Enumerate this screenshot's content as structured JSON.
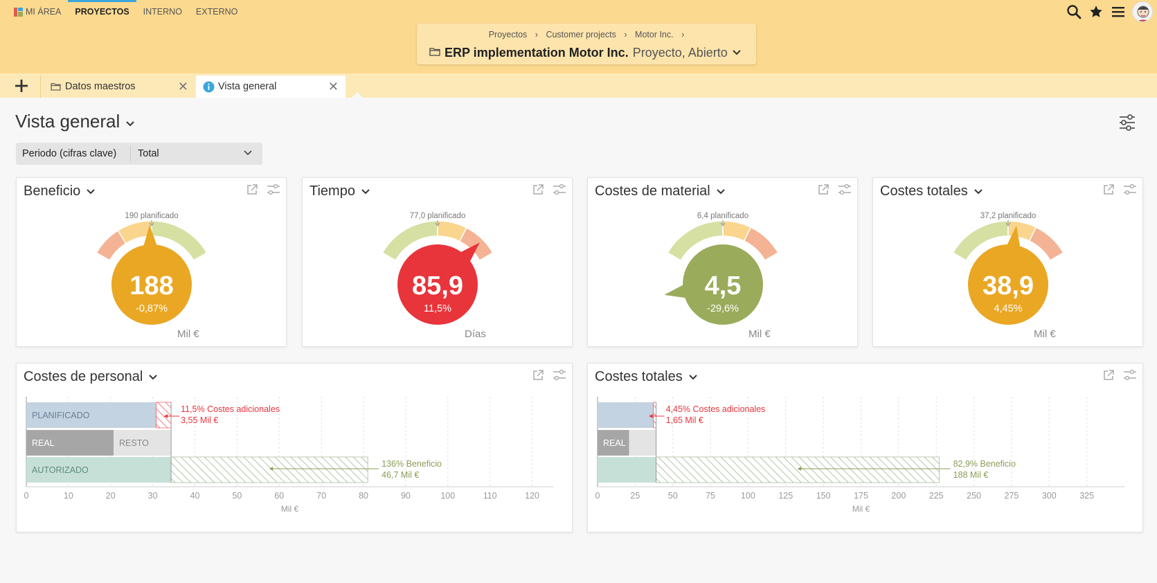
{
  "nav": {
    "items": [
      {
        "label": "MI ÁREA"
      },
      {
        "label": "PROYECTOS"
      },
      {
        "label": "INTERNO"
      },
      {
        "label": "EXTERNO"
      }
    ]
  },
  "breadcrumb": {
    "items": [
      "Proyectos",
      "Customer projects",
      "Motor Inc."
    ],
    "separator": "›",
    "project_name": "ERP implementation Motor Inc.",
    "project_status": "Proyecto, Abierto"
  },
  "tabs": {
    "items": [
      {
        "label": "Datos maestros",
        "icon": "folder-icon"
      },
      {
        "label": "Vista general",
        "icon": "info-icon"
      }
    ]
  },
  "page": {
    "title": "Vista general",
    "period_label": "Periodo (cifras clave)",
    "period_value": "Total"
  },
  "colors": {
    "topbar": "#fbd98f",
    "orange": "#eaa724",
    "red": "#e8343b",
    "olive": "#9aab5b",
    "arc_red": "#f4b394",
    "arc_yellow": "#fad58d",
    "arc_green": "#d6e0a3",
    "accent_blue": "#3aa6dc"
  },
  "gauges": [
    {
      "title": "Beneficio",
      "planned_label": "190 planificado",
      "value": "188",
      "delta": "-0,87%",
      "unit": "Mil €",
      "color": "#eaa724"
    },
    {
      "title": "Tiempo",
      "planned_label": "77,0 planificado",
      "value": "85,9",
      "delta": "11,5%",
      "unit": "Días",
      "color": "#e8343b"
    },
    {
      "title": "Costes de material",
      "planned_label": "6,4 planificado",
      "value": "4,5",
      "delta": "-29,6%",
      "unit": "Mil €",
      "color": "#9aab5b"
    },
    {
      "title": "Costes totales",
      "planned_label": "37,2 planificado",
      "value": "38,9",
      "delta": "4,45%",
      "unit": "Mil €",
      "color": "#eaa724"
    }
  ],
  "chart_data": [
    {
      "type": "bar",
      "title": "Costes de personal",
      "xlabel": "Mil €",
      "xlim": [
        0,
        125
      ],
      "xticks": [
        0,
        10,
        20,
        30,
        40,
        50,
        60,
        70,
        80,
        90,
        100,
        110,
        120
      ],
      "rows": [
        {
          "label": "PLANIFICADO",
          "value": 30.8,
          "overrun_to": 34.35
        },
        {
          "label": "REAL",
          "value": 20.7,
          "rest_label": "RESTO",
          "rest_to": 34.35
        },
        {
          "label": "AUTORIZADO",
          "value": 34.35,
          "profit_to": 81.0
        }
      ],
      "annotations": [
        {
          "line1": "11,5% Costes adicionales",
          "line2": "3,55 Mil €",
          "kind": "overrun"
        },
        {
          "line1": "136% Beneficio",
          "line2": "46,7 Mil €",
          "kind": "profit"
        }
      ]
    },
    {
      "type": "bar",
      "title": "Costes totales",
      "xlabel": "Mil €",
      "xlim": [
        0,
        350
      ],
      "xticks": [
        0,
        25,
        50,
        75,
        100,
        125,
        150,
        175,
        200,
        225,
        250,
        275,
        300,
        325
      ],
      "rows": [
        {
          "label": "",
          "value": 37.2,
          "overrun_to": 38.9
        },
        {
          "label": "REAL",
          "value": 21,
          "rest_label": "",
          "rest_to": 38.9
        },
        {
          "label": "",
          "value": 38.9,
          "profit_to": 227
        }
      ],
      "annotations": [
        {
          "line1": "4,45% Costes adicionales",
          "line2": "1,65 Mil €",
          "kind": "overrun"
        },
        {
          "line1": "82,9% Beneficio",
          "line2": "188 Mil €",
          "kind": "profit"
        }
      ]
    }
  ]
}
